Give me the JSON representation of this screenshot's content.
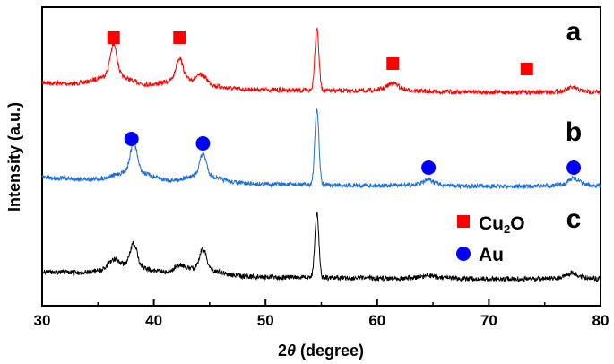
{
  "chart_data": {
    "type": "line",
    "xlabel_prefix": "2",
    "xlabel_theta": "θ",
    "xlabel_suffix": " (degree)",
    "ylabel": "Intensity (a.u.)",
    "xlim": [
      30,
      80
    ],
    "xticks": [
      "30",
      "40",
      "50",
      "60",
      "70",
      "80"
    ],
    "y_ticks_shown": false,
    "grid": false,
    "legend_position": "lower-right",
    "legend": [
      {
        "label_main": "Cu",
        "label_sub": "2",
        "label_tail": "O",
        "marker": "square",
        "color": "#ff0000"
      },
      {
        "label_main": "Au",
        "label_sub": "",
        "label_tail": "",
        "marker": "circle",
        "color": "#0000ff"
      }
    ],
    "series": [
      {
        "name": "a",
        "color": "#ff0000",
        "peaks": [
          {
            "x": 36.4,
            "height": 1.0
          },
          {
            "x": 42.3,
            "height": 0.7
          },
          {
            "x": 44.3,
            "height": 0.25
          },
          {
            "x": 54.6,
            "height": 2.05
          },
          {
            "x": 61.4,
            "height": 0.2
          },
          {
            "x": 77.5,
            "height": 0.12
          }
        ],
        "markers": [
          {
            "x": 36.4,
            "marker": "square"
          },
          {
            "x": 42.3,
            "marker": "square"
          },
          {
            "x": 61.4,
            "marker": "square"
          },
          {
            "x": 73.4,
            "marker": "square"
          }
        ]
      },
      {
        "name": "b",
        "color": "#1f6fd8",
        "peaks": [
          {
            "x": 38.2,
            "height": 1.0
          },
          {
            "x": 44.4,
            "height": 0.75
          },
          {
            "x": 54.6,
            "height": 2.65
          },
          {
            "x": 64.6,
            "height": 0.15
          },
          {
            "x": 77.6,
            "height": 0.22
          }
        ],
        "markers": [
          {
            "x": 38.0,
            "marker": "circle"
          },
          {
            "x": 44.4,
            "marker": "circle"
          },
          {
            "x": 64.6,
            "marker": "circle"
          },
          {
            "x": 77.6,
            "marker": "circle"
          }
        ]
      },
      {
        "name": "c",
        "color": "#000000",
        "peaks": [
          {
            "x": 36.4,
            "height": 0.35
          },
          {
            "x": 38.2,
            "height": 0.95
          },
          {
            "x": 42.3,
            "height": 0.25
          },
          {
            "x": 44.4,
            "height": 0.85
          },
          {
            "x": 54.6,
            "height": 2.75
          },
          {
            "x": 64.6,
            "height": 0.1
          },
          {
            "x": 77.5,
            "height": 0.2
          }
        ],
        "markers": []
      }
    ]
  }
}
